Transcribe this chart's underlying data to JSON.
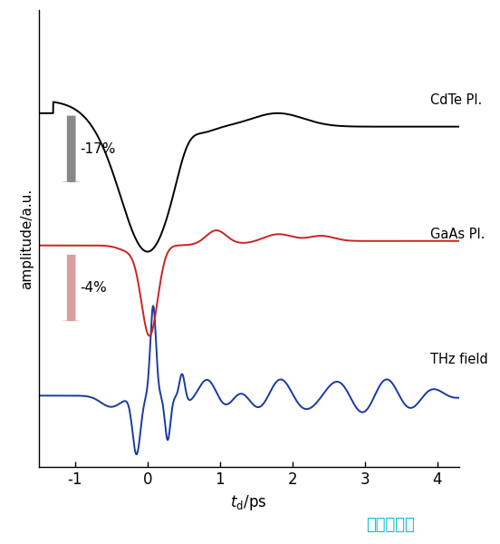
{
  "xlabel": "$t_{d}$/ps",
  "ylabel": "amplitude/a.u.",
  "xlim": [
    -1.5,
    4.3
  ],
  "xticks": [
    -1,
    0,
    1,
    2,
    3,
    4
  ],
  "background_color": "#ffffff",
  "cdTe_color": "#000000",
  "gaas_color": "#cc2222",
  "thz_color": "#1a3a9e",
  "cdTe_label": "CdTe Pl.",
  "gaas_label": "GaAs Pl.",
  "thz_label": "THz field",
  "cdTe_annotation": "-17%",
  "gaas_annotation": "-4%",
  "cdTe_arrow_color_top": "#666666",
  "cdTe_arrow_color_bot": "#aaaaaa",
  "gaas_arrow_color_top": "#cc8888",
  "gaas_arrow_color_bot": "#eecccc",
  "watermark_text": "自动秒链接",
  "watermark_color": "#00bcd4",
  "cdTe_baseline": 0.82,
  "gaas_baseline": 0.5,
  "thz_baseline": 0.16
}
